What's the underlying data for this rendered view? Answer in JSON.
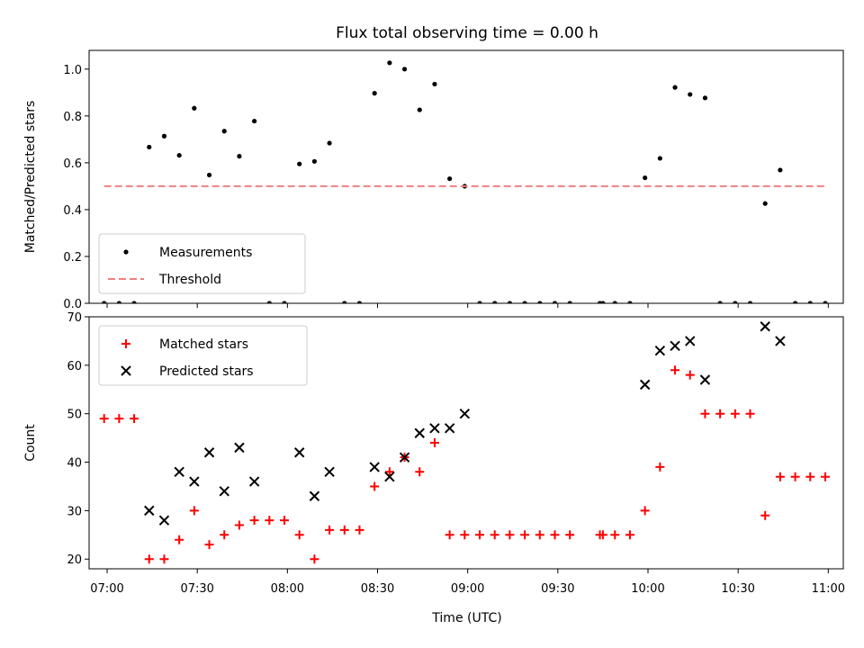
{
  "chart_data": {
    "type": "scatter",
    "title": "Flux total observing time = 0.00 h",
    "xlabel": "Time (UTC)",
    "x_ticks": [
      "07:00",
      "07:30",
      "08:00",
      "08:30",
      "09:00",
      "09:30",
      "10:00",
      "10:30",
      "11:00"
    ],
    "xlim": [
      "06:54",
      "11:05"
    ],
    "panels": [
      {
        "ylabel": "Matched/Predicted stars",
        "ylim": [
          0,
          1.08
        ],
        "y_ticks": [
          "0.0",
          "0.2",
          "0.4",
          "0.6",
          "0.8",
          "1.0"
        ],
        "legend_position": "lower-left",
        "series": [
          {
            "name": "Measurements",
            "marker": "dot",
            "color": "#000000",
            "x": [
              "06:59",
              "07:04",
              "07:09",
              "07:14",
              "07:19",
              "07:24",
              "07:29",
              "07:34",
              "07:39",
              "07:44",
              "07:49",
              "07:54",
              "07:59",
              "08:04",
              "08:09",
              "08:14",
              "08:19",
              "08:24",
              "08:29",
              "08:34",
              "08:39",
              "08:44",
              "08:49",
              "08:54",
              "08:59",
              "09:04",
              "09:09",
              "09:14",
              "09:19",
              "09:24",
              "09:29",
              "09:34",
              "09:44",
              "09:45",
              "09:49",
              "09:54",
              "09:59",
              "10:04",
              "10:09",
              "10:14",
              "10:19",
              "10:24",
              "10:29",
              "10:34",
              "10:39",
              "10:44",
              "10:49",
              "10:54",
              "10:59"
            ],
            "y": [
              0,
              0,
              0,
              0.667,
              0.714,
              0.632,
              0.833,
              0.548,
              0.735,
              0.628,
              0.778,
              0,
              0,
              0.595,
              0.606,
              0.684,
              0,
              0,
              0.897,
              1.027,
              1.0,
              0.826,
              0.936,
              0.532,
              0.5,
              0,
              0,
              0,
              0,
              0,
              0,
              0,
              0,
              0,
              0,
              0,
              0.536,
              0.619,
              0.922,
              0.892,
              0.877,
              0,
              0,
              0,
              0.426,
              0.569,
              0,
              0,
              0
            ]
          },
          {
            "name": "Threshold",
            "style": "dashed-line",
            "color": "#f08080",
            "x": [
              "06:59",
              "10:59"
            ],
            "y": [
              0.5,
              0.5
            ]
          }
        ]
      },
      {
        "ylabel": "Count",
        "ylim": [
          18,
          70
        ],
        "y_ticks": [
          "20",
          "30",
          "40",
          "50",
          "60",
          "70"
        ],
        "legend_position": "upper-left",
        "series": [
          {
            "name": "Matched stars",
            "marker": "plus",
            "color": "#ff0000",
            "x": [
              "06:59",
              "07:04",
              "07:09",
              "07:14",
              "07:19",
              "07:24",
              "07:29",
              "07:34",
              "07:39",
              "07:44",
              "07:49",
              "07:54",
              "07:59",
              "08:04",
              "08:09",
              "08:14",
              "08:19",
              "08:24",
              "08:29",
              "08:34",
              "08:39",
              "08:44",
              "08:49",
              "08:54",
              "08:59",
              "09:04",
              "09:09",
              "09:14",
              "09:19",
              "09:24",
              "09:29",
              "09:34",
              "09:44",
              "09:45",
              "09:49",
              "09:54",
              "09:59",
              "10:04",
              "10:09",
              "10:14",
              "10:19",
              "10:24",
              "10:29",
              "10:34",
              "10:39",
              "10:44",
              "10:49",
              "10:54",
              "10:59"
            ],
            "y": [
              49,
              49,
              49,
              20,
              20,
              24,
              30,
              23,
              25,
              27,
              28,
              28,
              28,
              25,
              20,
              26,
              26,
              26,
              35,
              38,
              41,
              38,
              44,
              25,
              25,
              25,
              25,
              25,
              25,
              25,
              25,
              25,
              25,
              25,
              25,
              25,
              30,
              39,
              59,
              58,
              50,
              50,
              50,
              50,
              29,
              37,
              37,
              37,
              37
            ]
          },
          {
            "name": "Predicted stars",
            "marker": "x",
            "color": "#000000",
            "x": [
              "07:14",
              "07:19",
              "07:24",
              "07:29",
              "07:34",
              "07:39",
              "07:44",
              "07:49",
              "08:04",
              "08:09",
              "08:14",
              "08:29",
              "08:34",
              "08:39",
              "08:44",
              "08:49",
              "08:54",
              "08:59",
              "09:59",
              "10:04",
              "10:09",
              "10:14",
              "10:19",
              "10:39",
              "10:44"
            ],
            "y": [
              30,
              28,
              38,
              36,
              42,
              34,
              43,
              36,
              42,
              33,
              38,
              39,
              37,
              41,
              46,
              47,
              47,
              50,
              56,
              63,
              64,
              65,
              57,
              68,
              65
            ]
          }
        ]
      }
    ]
  }
}
